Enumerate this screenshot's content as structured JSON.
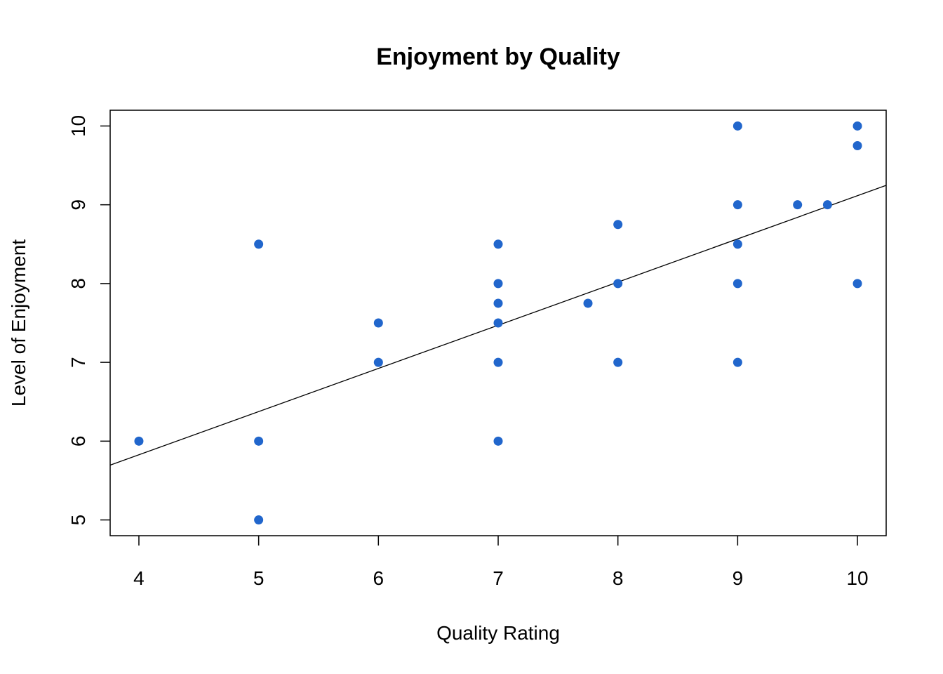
{
  "chart_data": {
    "type": "scatter",
    "title": "Enjoyment by Quality",
    "xlabel": "Quality Rating",
    "ylabel": "Level of Enjoyment",
    "xlim": [
      3.76,
      10.24
    ],
    "ylim": [
      4.8,
      10.2
    ],
    "x_ticks": [
      4,
      5,
      6,
      7,
      8,
      9,
      10
    ],
    "y_ticks": [
      5,
      6,
      7,
      8,
      9,
      10
    ],
    "x_tick_labels": [
      "4",
      "5",
      "6",
      "7",
      "8",
      "9",
      "10"
    ],
    "y_tick_labels": [
      "5",
      "6",
      "7",
      "8",
      "9",
      "10"
    ],
    "grid": false,
    "legend": "none",
    "point_color": "#2166CC",
    "line_color": "#000000",
    "points": [
      {
        "x": 4,
        "y": 6
      },
      {
        "x": 5,
        "y": 8.5
      },
      {
        "x": 5,
        "y": 6
      },
      {
        "x": 5,
        "y": 5
      },
      {
        "x": 6,
        "y": 7.5
      },
      {
        "x": 6,
        "y": 7
      },
      {
        "x": 7,
        "y": 8.5
      },
      {
        "x": 7,
        "y": 8
      },
      {
        "x": 7,
        "y": 7.75
      },
      {
        "x": 7,
        "y": 7.5
      },
      {
        "x": 7,
        "y": 7
      },
      {
        "x": 7,
        "y": 6
      },
      {
        "x": 7.75,
        "y": 7.75
      },
      {
        "x": 8,
        "y": 8.75
      },
      {
        "x": 8,
        "y": 8
      },
      {
        "x": 8,
        "y": 7
      },
      {
        "x": 9,
        "y": 10
      },
      {
        "x": 9,
        "y": 9
      },
      {
        "x": 9,
        "y": 8.5
      },
      {
        "x": 9,
        "y": 8
      },
      {
        "x": 9,
        "y": 7
      },
      {
        "x": 9.5,
        "y": 9
      },
      {
        "x": 9.75,
        "y": 9
      },
      {
        "x": 10,
        "y": 10
      },
      {
        "x": 10,
        "y": 9.75
      },
      {
        "x": 10,
        "y": 8
      }
    ],
    "fit_line": {
      "slope": 0.548,
      "intercept": 3.635
    }
  }
}
